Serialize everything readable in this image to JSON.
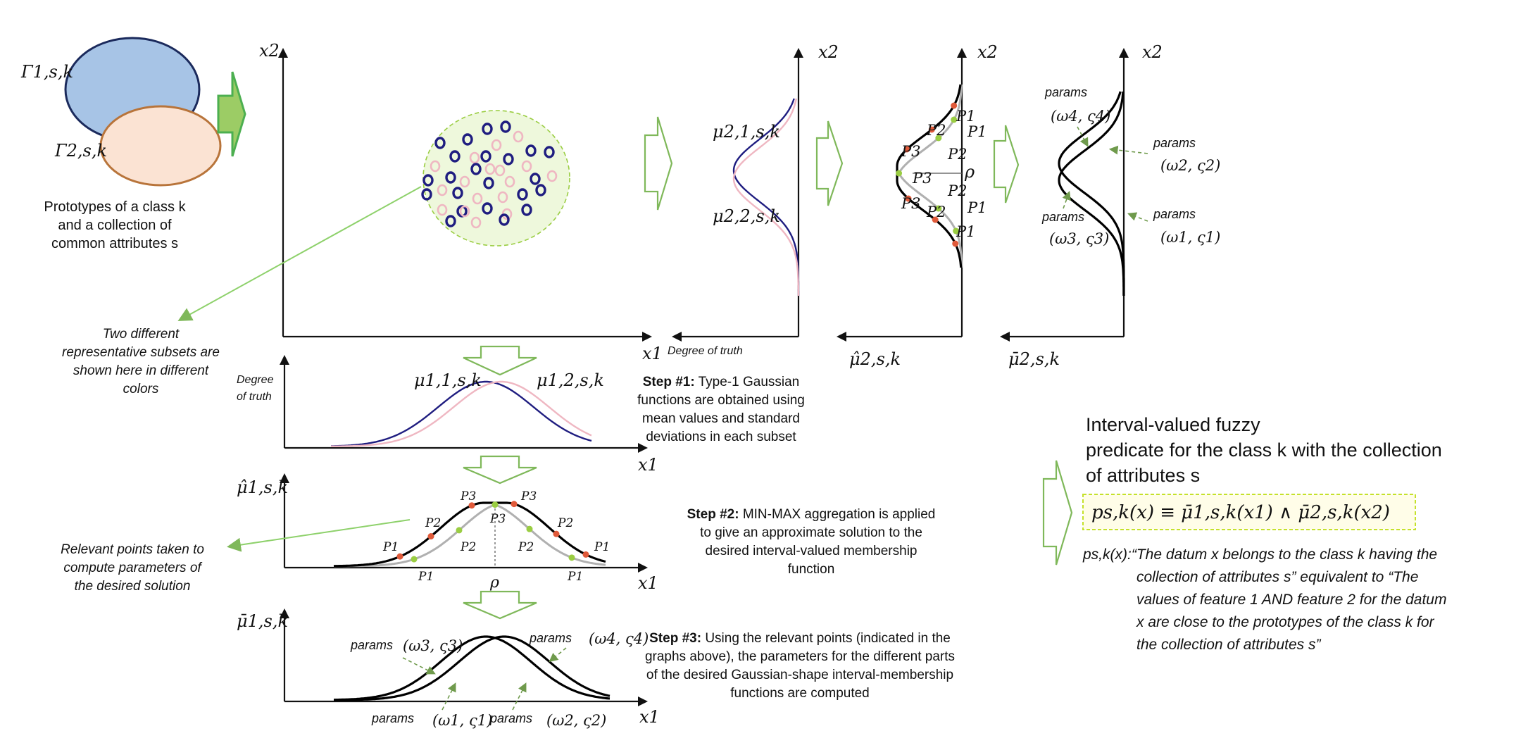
{
  "colors": {
    "subset_1": "#1f1d80",
    "subset_2": "#efb7c2",
    "set_gamma1_fill": "#a7c4e6",
    "set_gamma2_fill": "#fbe3d3",
    "arrow_green": "#7fb85a",
    "point_red": "#e05a3a",
    "point_green": "#9acd42",
    "predicate_box": "#c5e12b"
  },
  "prototypes": {
    "gamma1": "Γ1,s,k",
    "gamma2": "Γ2,s,k",
    "caption_line1": "Prototypes of a class k",
    "caption_line2": "and a collection of",
    "caption_line3": "common attributes s"
  },
  "scatter_plot": {
    "x_label": "x1",
    "y_label": "x2"
  },
  "subsets_note": {
    "line1": "Two different",
    "line2": "representative subsets are",
    "line3": "shown here in different",
    "line4": "colors"
  },
  "x2_type1_plot": {
    "y_label": "x2",
    "label_1": "μ2,1,s,k",
    "label_2": "μ2,2,s,k",
    "x_label": "Degree of truth"
  },
  "x2_minmax_plot": {
    "y_label": "x2",
    "x_label": "μ̂2,s,k",
    "rho": "ρ",
    "points": [
      "P1",
      "P2",
      "P3"
    ]
  },
  "x2_interval_plot": {
    "y_label": "x2",
    "x_label": "μ̄2,s,k",
    "params_word": "params",
    "p4": "(ω4, ς4)",
    "p2": "(ω2, ς2)",
    "p3": "(ω3, ς3)",
    "p1": "(ω1, ς1)"
  },
  "x1_type1_plot": {
    "y_label_line1": "Degree",
    "y_label_line2": "of truth",
    "x_label": "x1",
    "label_1": "μ1,1,s,k",
    "label_2": "μ1,2,s,k"
  },
  "x1_minmax_plot": {
    "y_label": "μ̂1,s,k",
    "x_label": "x1",
    "rho": "ρ",
    "points": [
      "P1",
      "P2",
      "P3"
    ]
  },
  "x1_interval_plot": {
    "y_label": "μ̄1,s,k",
    "x_label": "x1",
    "params_word": "params",
    "p3": "(ω3, ς3)",
    "p4": "(ω4, ς4)",
    "p1": "(ω1, ς1)",
    "p2": "(ω2, ς2)"
  },
  "relevant_note": {
    "line1": "Relevant points taken to",
    "line2": "compute parameters of",
    "line3": "the desired solution"
  },
  "step1": {
    "head": "Step #1:",
    "line1": " Type-1 Gaussian",
    "line2": "functions are obtained using",
    "line3": "mean values and standard",
    "line4": "deviations in each subset"
  },
  "step2": {
    "head": "Step #2:",
    "line1": " MIN-MAX aggregation is applied",
    "line2": "to give an approximate solution to the",
    "line3": "desired interval-valued membership",
    "line4": "function"
  },
  "step3": {
    "head": "Step #3:",
    "line1": " Using the relevant points (indicated in the",
    "line2": "graphs above), the parameters for the different parts",
    "line3": "of the desired Gaussian-shape interval-membership",
    "line4": "functions are computed"
  },
  "predicate": {
    "title_line1": "Interval-valued fuzzy",
    "title_line2": "predicate for the class k with the collection",
    "title_line3": "of attributes s",
    "formula": "ps,k(x) ≡ μ̄1,s,k(x1) ∧ μ̄2,s,k(x2)",
    "desc_line1": "ps,k(x):“The datum x belongs to the class k having the",
    "desc_line2": "collection of attributes s” equivalent to “The",
    "desc_line3": "values of feature 1 AND feature 2 for the datum",
    "desc_line4": "x are close to the prototypes of the class k for",
    "desc_line5": "the collection of attributes s”"
  }
}
